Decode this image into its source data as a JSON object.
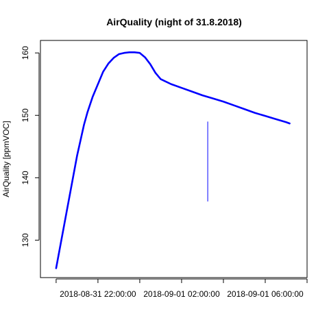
{
  "chart_data": {
    "type": "line",
    "title": "AirQuality (night of 31.8.2018)",
    "xlabel": "",
    "ylabel": "AirQuality [ppmVOC]",
    "x_axis_type": "datetime",
    "xlim": [
      "2018-08-31 19:15:00",
      "2018-09-01 08:00:00"
    ],
    "ylim": [
      124,
      162
    ],
    "x_ticks": [
      "2018-08-31 20:00:00",
      "2018-08-31 22:00:00",
      "2018-09-01 00:00:00",
      "2018-09-01 02:00:00",
      "2018-09-01 04:00:00",
      "2018-09-01 06:00:00",
      "2018-09-01 08:00:00"
    ],
    "x_tick_labels": [
      "",
      "2018-08-31 22:00:00",
      "",
      "2018-09-01 02:00:00",
      "",
      "2018-09-01 06:00:00",
      ""
    ],
    "y_ticks": [
      130,
      140,
      150,
      160
    ],
    "y_tick_labels": [
      "130",
      "140",
      "150",
      "160"
    ],
    "grid": false,
    "legend": "none",
    "series": [
      {
        "color": "#0000ff",
        "x": [
          "2018-08-31 20:00:00",
          "2018-08-31 20:10:00",
          "2018-08-31 20:20:00",
          "2018-08-31 20:30:00",
          "2018-08-31 20:40:00",
          "2018-08-31 20:50:00",
          "2018-08-31 21:00:00",
          "2018-08-31 21:10:00",
          "2018-08-31 21:20:00",
          "2018-08-31 21:30:00",
          "2018-08-31 21:45:00",
          "2018-08-31 22:00:00",
          "2018-08-31 22:15:00",
          "2018-08-31 22:30:00",
          "2018-08-31 22:45:00",
          "2018-08-31 23:00:00",
          "2018-08-31 23:15:00",
          "2018-08-31 23:30:00",
          "2018-08-31 23:45:00",
          "2018-09-01 00:00:00",
          "2018-09-01 00:15:00",
          "2018-09-01 00:30:00",
          "2018-09-01 00:45:00",
          "2018-09-01 01:00:00",
          "2018-09-01 01:30:00",
          "2018-09-01 02:00:00",
          "2018-09-01 02:30:00",
          "2018-09-01 03:00:00",
          "2018-09-01 03:30:00",
          "2018-09-01 04:00:00",
          "2018-09-01 04:30:00",
          "2018-09-01 05:00:00",
          "2018-09-01 05:30:00",
          "2018-09-01 06:00:00",
          "2018-09-01 06:30:00",
          "2018-09-01 07:00:00",
          "2018-09-01 07:10:00"
        ],
        "y": [
          125.5,
          128.5,
          131.5,
          134.5,
          137.5,
          140.5,
          143.5,
          146.0,
          148.5,
          150.5,
          153.0,
          155.0,
          157.0,
          158.3,
          159.2,
          159.8,
          160.0,
          160.1,
          160.1,
          160.0,
          159.3,
          158.2,
          156.8,
          155.8,
          155.0,
          154.4,
          153.8,
          153.2,
          152.7,
          152.2,
          151.6,
          151.0,
          150.4,
          149.9,
          149.4,
          148.9,
          148.7
        ]
      }
    ],
    "annotations": [
      {
        "x": "2018-09-01 03:15:00",
        "y_from": 136.2,
        "y_to": 149.0
      }
    ]
  }
}
